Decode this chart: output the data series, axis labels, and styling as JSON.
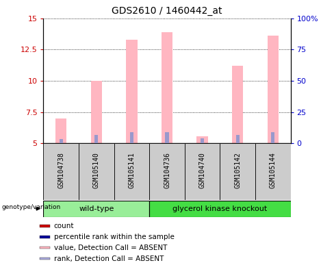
{
  "title": "GDS2610 / 1460442_at",
  "samples": [
    "GSM104738",
    "GSM105140",
    "GSM105141",
    "GSM104736",
    "GSM104740",
    "GSM105142",
    "GSM105144"
  ],
  "pink_bar_values": [
    7.0,
    10.0,
    13.3,
    13.9,
    5.55,
    11.2,
    13.6
  ],
  "blue_bar_values": [
    5.35,
    5.65,
    5.9,
    5.9,
    5.4,
    5.7,
    5.9
  ],
  "ylim": [
    5.0,
    15.0
  ],
  "yticks_left": [
    5,
    7.5,
    10,
    12.5,
    15
  ],
  "yticks_right": [
    0,
    25,
    50,
    75,
    100
  ],
  "ylabel_left_color": "#CC0000",
  "ylabel_right_color": "#0000CC",
  "pink_color": "#FFB6C1",
  "blue_color": "#9999CC",
  "wt_color": "#99EE99",
  "gk_color": "#44DD44",
  "sample_box_color": "#CCCCCC",
  "legend_items": [
    {
      "color": "#CC0000",
      "label": "count"
    },
    {
      "color": "#000099",
      "label": "percentile rank within the sample"
    },
    {
      "color": "#FFB6C1",
      "label": "value, Detection Call = ABSENT"
    },
    {
      "color": "#AAAADD",
      "label": "rank, Detection Call = ABSENT"
    }
  ],
  "wt_count": 3,
  "gk_count": 4,
  "group_label": "genotype/variation"
}
